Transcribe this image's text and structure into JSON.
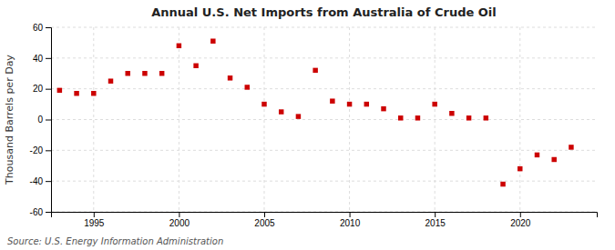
{
  "chart_data": {
    "type": "scatter",
    "title": "Annual U.S. Net Imports from Australia of Crude Oil",
    "ylabel": "Thousand Barrels per Day",
    "annotations": [
      "Source: U.S. Energy Information Administration"
    ],
    "x": [
      1993,
      1994,
      1995,
      1996,
      1997,
      1998,
      1999,
      2000,
      2001,
      2002,
      2003,
      2004,
      2005,
      2006,
      2007,
      2008,
      2009,
      2010,
      2011,
      2012,
      2013,
      2014,
      2015,
      2016,
      2017,
      2018,
      2019,
      2020,
      2021,
      2022,
      2023
    ],
    "values": [
      19,
      17,
      17,
      25,
      30,
      30,
      30,
      48,
      35,
      51,
      27,
      21,
      10,
      5,
      2,
      32,
      12,
      10,
      10,
      7,
      1,
      1,
      10,
      4,
      1,
      1,
      -42,
      -32,
      -23,
      -26,
      -18
    ],
    "color": "#cc0000",
    "marker": "square",
    "xlim": [
      1992.5,
      2024.5
    ],
    "xticks": [
      1995,
      2000,
      2005,
      2010,
      2015,
      2020
    ],
    "ylim": [
      -60,
      60
    ],
    "yticks": [
      -60,
      -40,
      -20,
      0,
      20,
      40,
      60
    ],
    "grid": true
  }
}
